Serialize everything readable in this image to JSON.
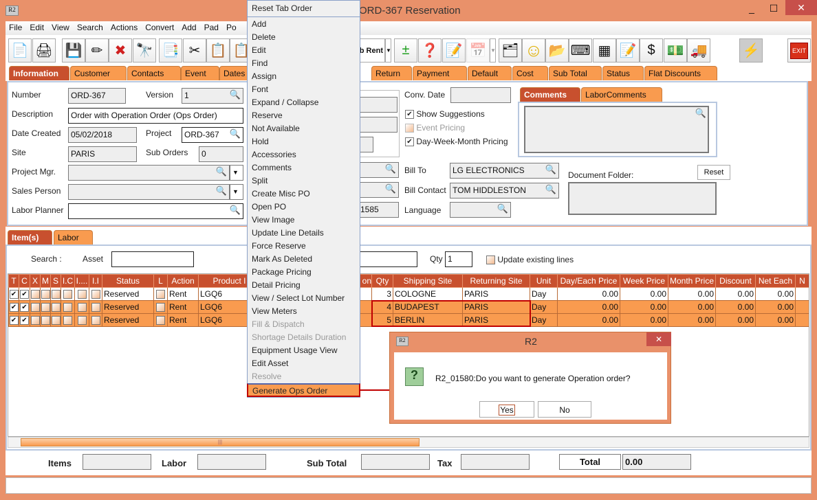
{
  "window": {
    "title": "ORD-367 Reservation",
    "app_icon": "R2"
  },
  "menubar": [
    "File",
    "Edit",
    "View",
    "Search",
    "Actions",
    "Convert",
    "Add",
    "Pad",
    "Po"
  ],
  "toolbar": {
    "sub_rent_label": "ub Rent",
    "exit_label": "EXIT",
    "icons": [
      "new-document-icon",
      "print-icon",
      "save-icon",
      "pencil-icon",
      "delete-x-icon",
      "binoculars-icon",
      "convert-icon",
      "cut-icon",
      "copy-icon",
      "paste-icon",
      "add-remove-icon",
      "question-balls-icon",
      "notepad-edit-icon",
      "calendar-icon",
      "hierarchy-icon",
      "smiley-icon",
      "folder-clock-icon",
      "keyboard-key-icon",
      "stack-icon",
      "edit-form-icon",
      "money-forward-icon",
      "money-note-icon",
      "truck-icon",
      "lightning-icon",
      "exit-icon"
    ]
  },
  "tabs": [
    "Information",
    "Customer",
    "Contacts",
    "Event",
    "Dates",
    "Return",
    "Payment",
    "Default",
    "Cost",
    "Sub Total",
    "Status",
    "Flat Discounts"
  ],
  "info": {
    "number_label": "Number",
    "number": "ORD-367",
    "version_label": "Version",
    "version": "1",
    "description_label": "Description",
    "description": "Order with Operation Order (Ops Order)",
    "date_created_label": "Date Created",
    "date_created": "05/02/2018",
    "project_label": "Project",
    "project": "ORD-367",
    "site_label": "Site",
    "site": "PARIS",
    "sub_orders_label": "Sub Orders",
    "sub_orders": "0",
    "project_mgr_label": "Project Mgr.",
    "sales_person_label": "Sales Person",
    "labor_planner_label": "Labor Planner",
    "partial_value": "1585",
    "conv_date_label": "Conv. Date",
    "show_suggestions": "Show Suggestions",
    "event_pricing": "Event Pricing",
    "dwm_pricing": "Day-Week-Month Pricing",
    "bill_to_label": "Bill To",
    "bill_to": "LG ELECTRONICS",
    "bill_contact_label": "Bill Contact",
    "bill_contact": "TOM HIDDLESTON",
    "language_label": "Language",
    "comments_tab": "Comments",
    "labor_comments_tab": "LaborComments",
    "document_folder_label": "Document Folder:",
    "reset_label": "Reset"
  },
  "items_tabs": [
    "Item(s)",
    "Labor"
  ],
  "search": {
    "label": "Search :",
    "asset_label": "Asset",
    "qty_label": "Qty",
    "qty": "1",
    "update_label": "Update existing lines"
  },
  "table": {
    "headers": [
      "T",
      "C",
      "X",
      "M",
      "S",
      "I.C",
      "I....",
      "I.I",
      "Status",
      "L",
      "Action",
      "Product I",
      "on",
      "Qty",
      "Shipping Site",
      "Returning Site",
      "Unit",
      "Day/Each Price",
      "Week Price",
      "Month Price",
      "Discount",
      "Net Each",
      "N"
    ],
    "rows": [
      {
        "t": true,
        "c": true,
        "status": "Reserved",
        "action": "Rent",
        "product": "LGQ6",
        "qty": "3",
        "ship": "COLOGNE",
        "ret": "PARIS",
        "unit": "Day",
        "day": "0.00",
        "week": "0.00",
        "month": "0.00",
        "disc": "0.00",
        "net": "0.00"
      },
      {
        "t": true,
        "c": true,
        "status": "Reserved",
        "action": "Rent",
        "product": "LGQ6",
        "qty": "4",
        "ship": "BUDAPEST",
        "ret": "PARIS",
        "unit": "Day",
        "day": "0.00",
        "week": "0.00",
        "month": "0.00",
        "disc": "0.00",
        "net": "0.00"
      },
      {
        "t": true,
        "c": true,
        "status": "Reserved",
        "action": "Rent",
        "product": "LGQ6",
        "qty": "5",
        "ship": "BERLIN",
        "ret": "PARIS",
        "unit": "Day",
        "day": "0.00",
        "week": "0.00",
        "month": "0.00",
        "disc": "0.00",
        "net": "0.00"
      }
    ]
  },
  "totals": {
    "items_label": "Items",
    "labor_label": "Labor",
    "sub_total_label": "Sub Total",
    "tax_label": "Tax",
    "total_label": "Total",
    "total": "0.00"
  },
  "context_menu": {
    "header": "Reset Tab Order",
    "items": [
      {
        "label": "Add"
      },
      {
        "label": "Delete"
      },
      {
        "label": "Edit"
      },
      {
        "label": "Find"
      },
      {
        "label": "Assign"
      },
      {
        "label": "Font"
      },
      {
        "label": "Expand / Collapse"
      },
      {
        "label": "Reserve"
      },
      {
        "label": "Not Available"
      },
      {
        "label": "Hold"
      },
      {
        "label": "Accessories"
      },
      {
        "label": "Comments"
      },
      {
        "label": "Split"
      },
      {
        "label": "Create Misc PO"
      },
      {
        "label": "Open PO"
      },
      {
        "label": "View Image"
      },
      {
        "label": "Update Line Details"
      },
      {
        "label": "Force Reserve"
      },
      {
        "label": "Mark As Deleted"
      },
      {
        "label": "Package Pricing"
      },
      {
        "label": "Detail Pricing"
      },
      {
        "label": "View / Select Lot Number"
      },
      {
        "label": "View Meters"
      },
      {
        "label": "Fill & Dispatch",
        "disabled": true
      },
      {
        "label": "Shortage Details Duration",
        "disabled": true
      },
      {
        "label": "Equipment Usage View"
      },
      {
        "label": "Edit Asset"
      },
      {
        "label": "Resolve",
        "disabled": true
      },
      {
        "label": "Generate Ops Order",
        "highlighted": true
      }
    ]
  },
  "dialog": {
    "title": "R2",
    "message": "R2_01580:Do you want to generate Operation order?",
    "yes": "Yes",
    "no": "No"
  },
  "colors": {
    "window": "#e9916a",
    "tab": "#f99b4f",
    "active_tab": "#c8502e",
    "highlight": "#c00000"
  }
}
